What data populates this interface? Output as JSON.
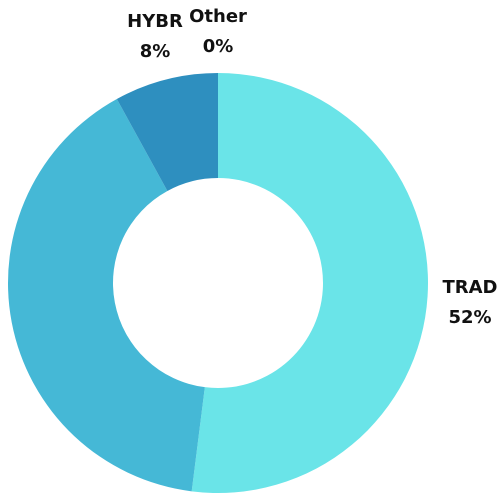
{
  "chart_data": {
    "type": "donut",
    "categories": [
      "TRAD",
      null,
      "HYBR",
      "Other"
    ],
    "values": [
      52,
      40,
      8,
      0
    ],
    "value_labels": [
      "52%",
      null,
      "8%",
      "0%"
    ],
    "colors": [
      "#6ae4e8",
      "#45b8d6",
      "#2e8fbf",
      "#2a7fb0"
    ]
  }
}
